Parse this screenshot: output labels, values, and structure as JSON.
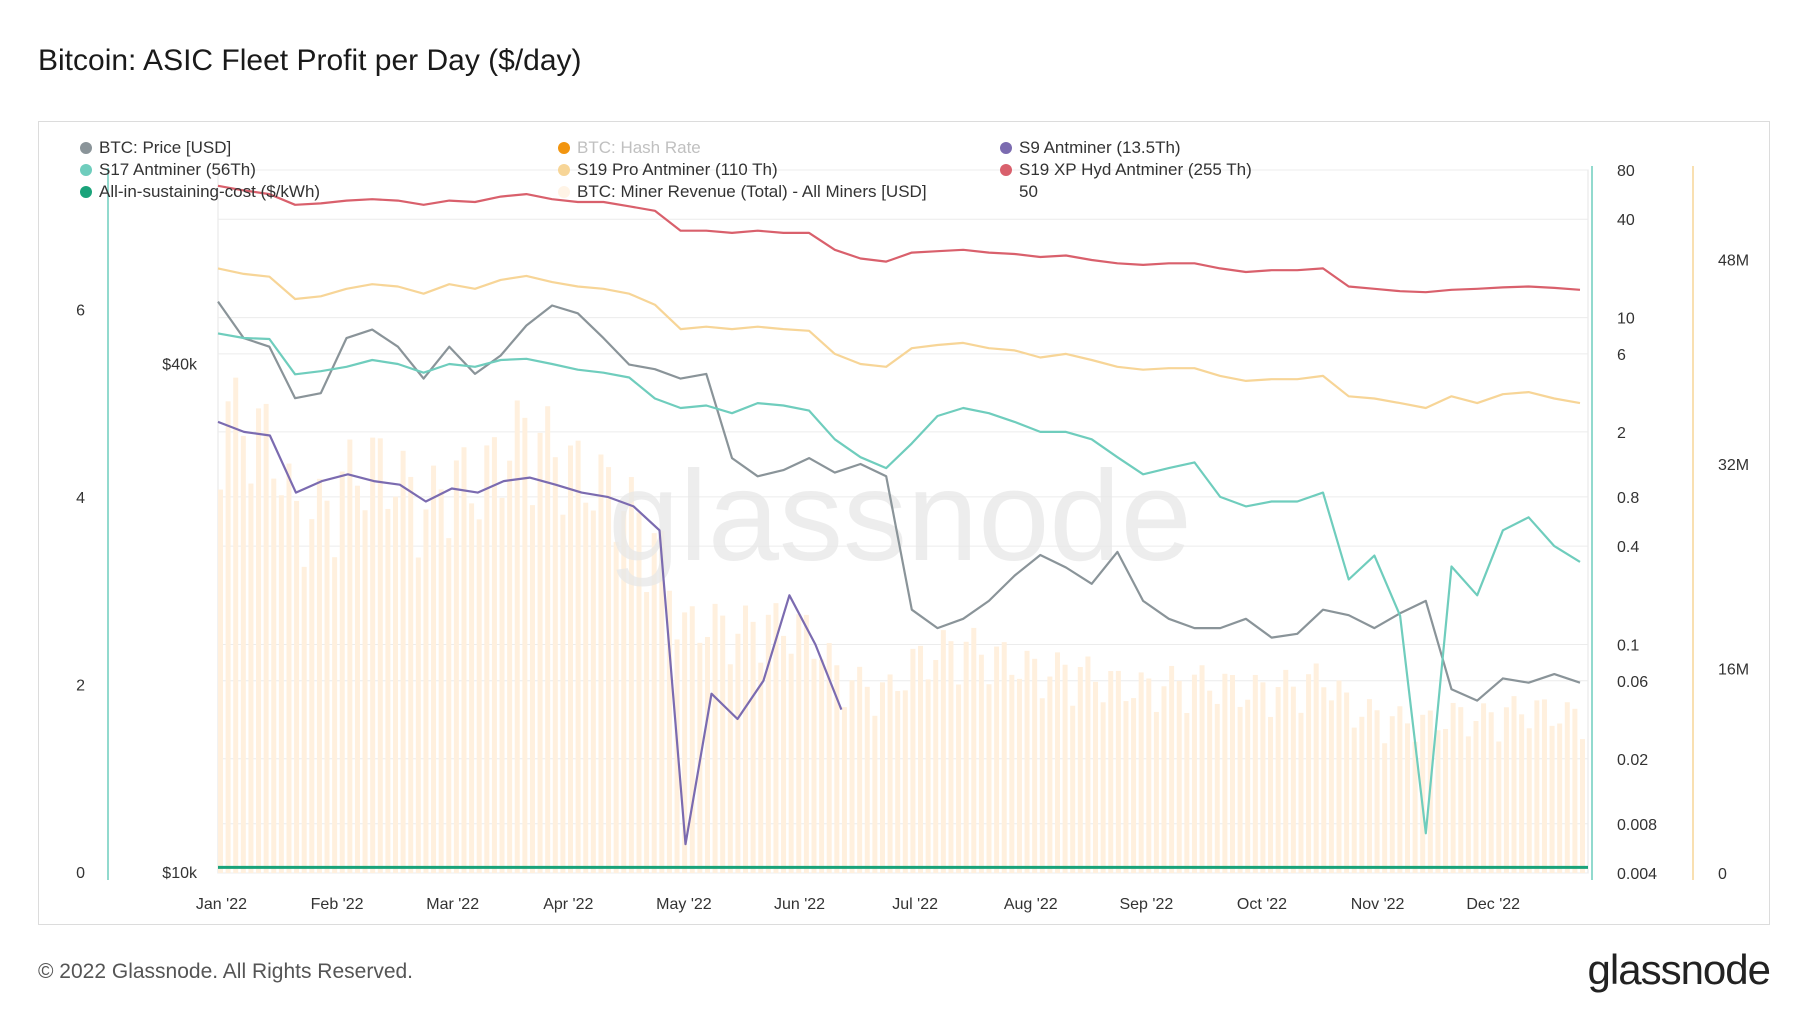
{
  "page": {
    "title": "Bitcoin: ASIC Fleet Profit per Day ($/day)"
  },
  "footer": {
    "copyright": "© 2022 Glassnode. All Rights Reserved.",
    "logo": "glassnode"
  },
  "watermark": "glassnode",
  "legend": [
    {
      "label": "BTC: Price [USD]",
      "color": "#8a9499",
      "muted": false
    },
    {
      "label": "BTC: Hash Rate",
      "color": "#f2950f",
      "muted": true
    },
    {
      "label": "S9 Antminer (13.5Th)",
      "color": "#7b6bb0",
      "muted": false
    },
    {
      "label": "S17 Antminer (56Th)",
      "color": "#6fcdbd",
      "muted": false
    },
    {
      "label": "S19 Pro Antminer (110 Th)",
      "color": "#f7d597",
      "muted": false
    },
    {
      "label": "S19 XP Hyd Antminer (255 Th)",
      "color": "#d9606c",
      "muted": false
    },
    {
      "label": "All-in-sustaining-cost ($/kWh)",
      "color": "#1aa37a",
      "muted": false
    },
    {
      "label": "BTC: Miner Revenue (Total) - All Miners [USD]",
      "color": "#fff4e6",
      "muted": false
    }
  ],
  "legend_extra": "50",
  "chart_data": {
    "type": "line",
    "x_labels": [
      "Jan '22",
      "Feb '22",
      "Mar '22",
      "Apr '22",
      "May '22",
      "Jun '22",
      "Jul '22",
      "Aug '22",
      "Sep '22",
      "Oct '22",
      "Nov '22",
      "Dec '22"
    ],
    "axes": {
      "left_cost": {
        "ticks": [
          "0",
          "2",
          "4",
          "6"
        ],
        "range": [
          0,
          7.5
        ],
        "color": "#6fcdbd"
      },
      "left_price": {
        "ticks": [
          "$10k",
          "$40k"
        ],
        "scale": "log",
        "range": [
          10000,
          68000
        ]
      },
      "right_profit": {
        "ticks": [
          "0.004",
          "0.008",
          "0.02",
          "0.06",
          "0.1",
          "0.4",
          "0.8",
          "2",
          "6",
          "10",
          "40",
          "80"
        ],
        "scale": "log",
        "range": [
          0.004,
          80
        ]
      },
      "right_revenue": {
        "ticks": [
          "0",
          "16M",
          "32M",
          "48M"
        ],
        "range": [
          0,
          55000000
        ],
        "color": "#f7d597"
      }
    },
    "series": [
      {
        "name": "BTC: Price [USD]",
        "color": "#8a9499",
        "axis": "left_price",
        "values": [
          47500,
          43000,
          42000,
          36500,
          37000,
          43000,
          44000,
          42000,
          38500,
          42000,
          39000,
          41000,
          44500,
          47000,
          46000,
          43000,
          40000,
          39500,
          38500,
          39000,
          31000,
          29500,
          30000,
          31000,
          29800,
          30500,
          29500,
          20500,
          19500,
          20000,
          21000,
          22500,
          23800,
          23000,
          22000,
          24000,
          21000,
          20000,
          19500,
          19500,
          20000,
          19000,
          19200,
          20500,
          20200,
          19500,
          20300,
          21000,
          16500,
          16000,
          17000,
          16800,
          17200,
          16800
        ]
      },
      {
        "name": "S9 Antminer (13.5Th)",
        "color": "#7b6bb0",
        "axis": "right_profit",
        "values": [
          2.3,
          2.0,
          1.9,
          0.85,
          1.0,
          1.1,
          1.0,
          0.95,
          0.75,
          0.9,
          0.85,
          1.0,
          1.05,
          0.95,
          0.85,
          0.8,
          0.7,
          0.5,
          0.006,
          0.05,
          0.035,
          0.06,
          0.2,
          0.1,
          0.04
        ]
      },
      {
        "name": "S17 Antminer (56Th)",
        "color": "#6fcdbd",
        "axis": "right_profit",
        "values": [
          8.0,
          7.5,
          7.4,
          4.5,
          4.7,
          5.0,
          5.5,
          5.2,
          4.6,
          5.2,
          5.0,
          5.5,
          5.6,
          5.2,
          4.8,
          4.6,
          4.3,
          3.2,
          2.8,
          2.9,
          2.6,
          3.0,
          2.9,
          2.7,
          1.8,
          1.4,
          1.2,
          1.7,
          2.5,
          2.8,
          2.6,
          2.3,
          2.0,
          2.0,
          1.8,
          1.4,
          1.1,
          1.2,
          1.3,
          0.8,
          0.7,
          0.75,
          0.75,
          0.85,
          0.25,
          0.35,
          0.15,
          0.007,
          0.3,
          0.2,
          0.5,
          0.6,
          0.4,
          0.32
        ]
      },
      {
        "name": "S19 Pro Antminer (110 Th)",
        "color": "#f7d597",
        "axis": "right_profit",
        "values": [
          20,
          18.5,
          17.8,
          13,
          13.5,
          15,
          16,
          15.5,
          14,
          16,
          15,
          17,
          18,
          16.5,
          15.5,
          15,
          14,
          12,
          8.5,
          8.8,
          8.5,
          8.8,
          8.5,
          8.3,
          6.0,
          5.2,
          5.0,
          6.5,
          6.8,
          7.0,
          6.5,
          6.3,
          5.7,
          6.0,
          5.5,
          5.0,
          4.8,
          4.9,
          4.9,
          4.4,
          4.1,
          4.2,
          4.2,
          4.4,
          3.3,
          3.2,
          3.0,
          2.8,
          3.3,
          3.0,
          3.4,
          3.5,
          3.2,
          3.0
        ]
      },
      {
        "name": "S19 XP Hyd Antminer (255 Th)",
        "color": "#d9606c",
        "axis": "right_profit",
        "values": [
          64,
          60,
          57,
          49,
          50,
          52,
          53,
          52,
          49,
          52,
          51,
          55,
          57,
          53,
          51,
          51,
          48,
          45,
          34,
          34,
          33,
          34,
          33,
          33,
          26,
          23,
          22,
          25,
          25.5,
          26,
          25,
          24.5,
          23.5,
          24,
          22.5,
          21.5,
          21,
          21.5,
          21.5,
          20,
          19,
          19.5,
          19.5,
          20,
          15.5,
          15,
          14.5,
          14.3,
          14.8,
          15.0,
          15.3,
          15.5,
          15.2,
          14.8
        ]
      },
      {
        "name": "All-in-sustaining-cost ($/kWh)",
        "color": "#1aa37a",
        "axis": "left_cost",
        "values": [
          0.06,
          0.06
        ]
      },
      {
        "name": "BTC: Miner Revenue (Total) - All Miners [USD]",
        "color": "#fff0de",
        "axis": "right_revenue",
        "values": [
          40000000,
          38000000,
          37000000,
          30000000,
          31000000,
          34000000,
          35000000,
          33500000,
          31000000,
          34000000,
          33000000,
          36000000,
          38000000,
          36000000,
          34000000,
          33000000,
          31000000,
          28000000,
          21000000,
          21500000,
          20500000,
          21500000,
          21000000,
          20500000,
          17000000,
          16000000,
          15500000,
          18000000,
          19000000,
          19500000,
          18500000,
          18000000,
          17000000,
          17500000,
          16800000,
          16000000,
          15800000,
          16200000,
          16400000,
          16000000,
          15500000,
          15800000,
          16000000,
          16800000,
          14000000,
          13500000,
          13000000,
          12800000,
          13500000,
          13200000,
          13800000,
          14000000,
          13600000,
          13300000
        ]
      }
    ]
  }
}
